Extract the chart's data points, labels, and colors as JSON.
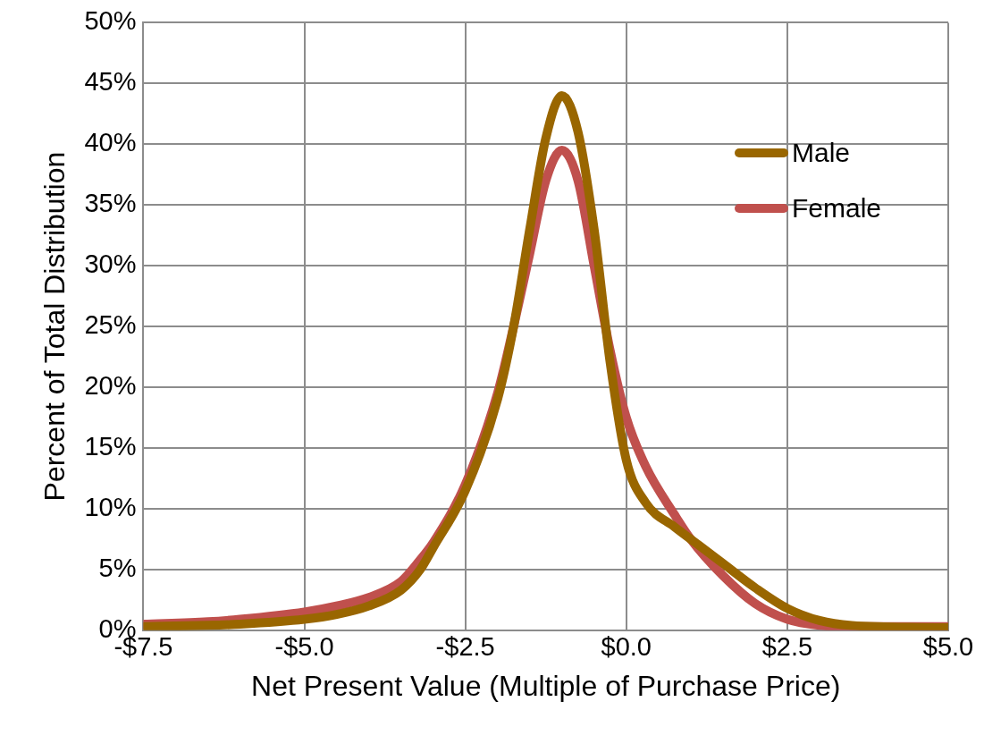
{
  "chart_data": {
    "type": "line",
    "xlabel": "Net Present Value (Multiple of Purchase Price)",
    "ylabel": "Percent of Total Distribution",
    "xlim": [
      -7.5,
      5
    ],
    "xticks": [
      {
        "value": -7.5,
        "label": "-$7.5"
      },
      {
        "value": -5,
        "label": "-$5.0"
      },
      {
        "value": -2.5,
        "label": "-$2.5"
      },
      {
        "value": 0,
        "label": "$0.0"
      },
      {
        "value": 2.5,
        "label": "$2.5"
      },
      {
        "value": 5,
        "label": "$5.0"
      }
    ],
    "ylim": [
      0,
      50
    ],
    "yticks": [
      {
        "value": 0,
        "label": "0%"
      },
      {
        "value": 5,
        "label": "5%"
      },
      {
        "value": 10,
        "label": "10%"
      },
      {
        "value": 15,
        "label": "15%"
      },
      {
        "value": 20,
        "label": "20%"
      },
      {
        "value": 25,
        "label": "25%"
      },
      {
        "value": 30,
        "label": "30%"
      },
      {
        "value": 35,
        "label": "35%"
      },
      {
        "value": 40,
        "label": "40%"
      },
      {
        "value": 45,
        "label": "45%"
      },
      {
        "value": 50,
        "label": "50%"
      }
    ],
    "x": [
      -7.5,
      -6.5,
      -6,
      -5,
      -4.5,
      -4,
      -3.5,
      -3.2,
      -3,
      -2.5,
      -2,
      -1.75,
      -1.5,
      -1.25,
      -1,
      -0.75,
      -0.5,
      -0.25,
      0,
      0.3,
      0.75,
      1,
      1.5,
      2,
      2.5,
      3,
      3.5,
      5
    ],
    "series": [
      {
        "name": "Male",
        "color": "#996600",
        "values": [
          0.3,
          0.4,
          0.5,
          0.9,
          1.3,
          2.0,
          3.3,
          5.0,
          6.8,
          11.5,
          19,
          25,
          33,
          40.5,
          44,
          41,
          33,
          22,
          14,
          10.5,
          8.5,
          7.5,
          5.5,
          3.5,
          1.8,
          0.8,
          0.4,
          0.2
        ]
      },
      {
        "name": "Female",
        "color": "#c0504d",
        "values": [
          0.5,
          0.7,
          0.9,
          1.5,
          2.0,
          2.7,
          4.0,
          5.8,
          7.2,
          12,
          19.5,
          25,
          31,
          37,
          39.5,
          37,
          30,
          23,
          17.5,
          13.5,
          9.5,
          7.5,
          4.5,
          2.2,
          0.9,
          0.4,
          0.3,
          0.3
        ]
      }
    ],
    "grid": true,
    "legend": "top right",
    "marker": "none",
    "line_style": "solid"
  }
}
